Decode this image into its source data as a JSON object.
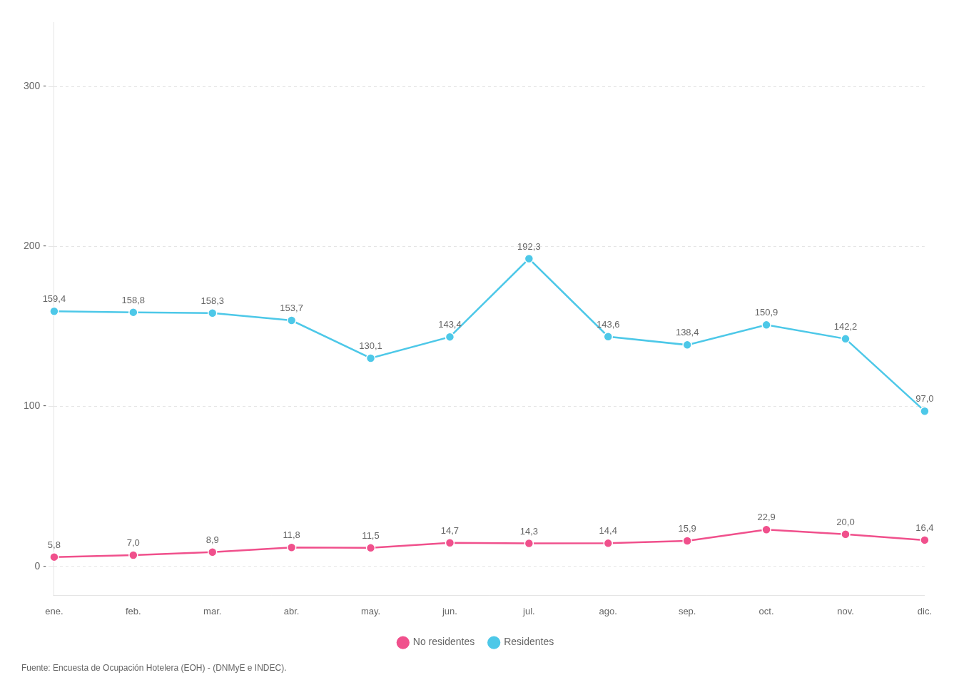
{
  "chart_data": {
    "type": "line",
    "categories": [
      "ene.",
      "feb.",
      "mar.",
      "abr.",
      "may.",
      "jun.",
      "jul.",
      "ago.",
      "sep.",
      "oct.",
      "nov.",
      "dic."
    ],
    "series": [
      {
        "name": "Residentes",
        "color": "#4DC8E8",
        "marker": "circle",
        "values": [
          159.4,
          158.8,
          158.3,
          153.7,
          130.1,
          143.4,
          192.3,
          143.6,
          138.4,
          150.9,
          142.2,
          97.0
        ],
        "value_labels": [
          "159,4",
          "158,8",
          "158,3",
          "153,7",
          "130,1",
          "143,4",
          "192,3",
          "143,6",
          "138,4",
          "150,9",
          "142,2",
          "97,0"
        ]
      },
      {
        "name": "No residentes",
        "color": "#F0508C",
        "marker": "circle",
        "values": [
          5.8,
          7.0,
          8.9,
          11.8,
          11.5,
          14.7,
          14.3,
          14.4,
          15.9,
          22.9,
          20.0,
          16.4
        ],
        "value_labels": [
          "5,8",
          "7,0",
          "8,9",
          "11,8",
          "11,5",
          "14,7",
          "14,3",
          "14,4",
          "15,9",
          "22,9",
          "20,0",
          "16,4"
        ]
      }
    ],
    "ylim": [
      -18,
      340
    ],
    "yticks": [
      {
        "value": 0,
        "label": "0 -"
      },
      {
        "value": 100,
        "label": "100 -"
      },
      {
        "value": 200,
        "label": "200 -"
      },
      {
        "value": 300,
        "label": "300 -"
      }
    ],
    "grid": true,
    "legend": "bottom",
    "data_labels": true,
    "annotations": [
      "Fuente: Encuesta de Ocupación Hotelera (EOH) - (DNMyE e INDEC)."
    ]
  }
}
